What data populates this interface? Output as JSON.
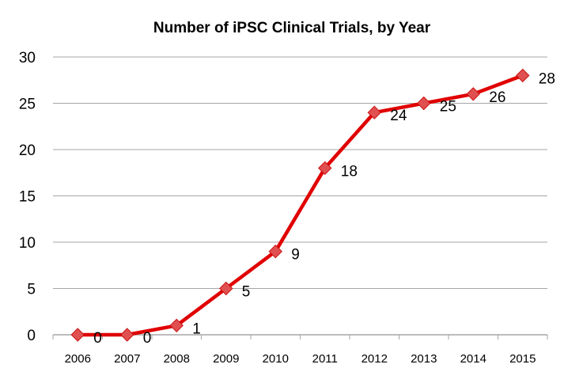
{
  "chart_data": {
    "type": "line",
    "title": "Number of iPSC Clinical Trials, by Year",
    "xlabel": "",
    "ylabel": "",
    "categories": [
      "2006",
      "2007",
      "2008",
      "2009",
      "2010",
      "2011",
      "2012",
      "2013",
      "2014",
      "2015"
    ],
    "values": [
      0,
      0,
      1,
      5,
      9,
      18,
      24,
      25,
      26,
      28
    ],
    "ylim": [
      0,
      30
    ],
    "yticks": [
      0,
      5,
      10,
      15,
      20,
      25,
      30
    ],
    "grid": true,
    "legend": "none",
    "line_color": "#e00000",
    "marker": "diamond",
    "marker_color": "#e05050",
    "data_labels": true
  }
}
